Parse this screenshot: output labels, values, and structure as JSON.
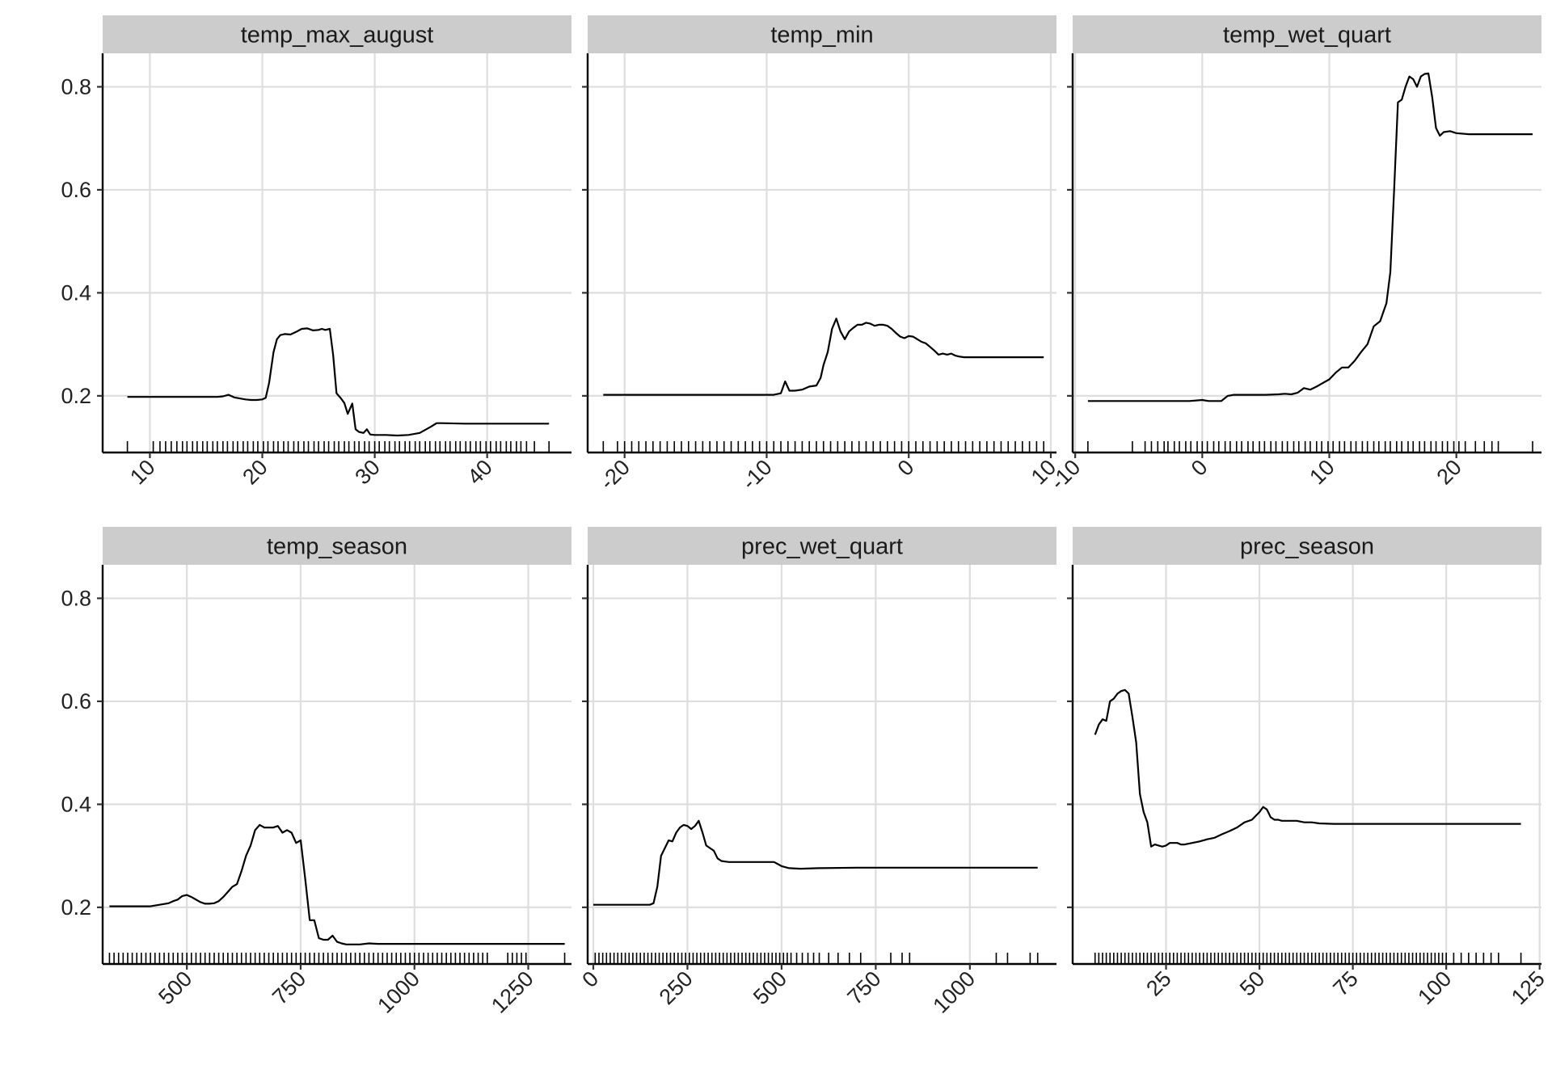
{
  "chart_data": [
    {
      "type": "line",
      "title": "temp_max_august",
      "xlim": [
        5.8,
        47.5
      ],
      "ylim": [
        0.09,
        0.865
      ],
      "xticks": [
        10,
        20,
        30,
        40
      ],
      "yticks": [
        0.2,
        0.4,
        0.6,
        0.8
      ],
      "x": [
        8,
        10,
        12,
        14,
        16,
        16.5,
        17,
        17.5,
        18,
        18.5,
        19,
        19.5,
        20,
        20.3,
        20.6,
        21,
        21.3,
        21.6,
        22,
        22.5,
        23,
        23.5,
        24,
        24.5,
        25,
        25.3,
        25.6,
        26,
        26.3,
        26.6,
        27,
        27.3,
        27.6,
        28,
        28.3,
        28.6,
        29,
        29.3,
        29.6,
        30,
        31,
        32,
        33,
        34,
        35,
        35.5,
        36,
        38,
        40,
        42,
        44,
        45.5
      ],
      "y": [
        0.198,
        0.198,
        0.198,
        0.198,
        0.198,
        0.199,
        0.202,
        0.197,
        0.195,
        0.193,
        0.192,
        0.192,
        0.193,
        0.196,
        0.225,
        0.285,
        0.31,
        0.318,
        0.32,
        0.319,
        0.324,
        0.33,
        0.331,
        0.327,
        0.328,
        0.33,
        0.328,
        0.33,
        0.28,
        0.205,
        0.195,
        0.186,
        0.165,
        0.185,
        0.135,
        0.13,
        0.128,
        0.135,
        0.125,
        0.124,
        0.124,
        0.123,
        0.124,
        0.128,
        0.14,
        0.147,
        0.147,
        0.146,
        0.146,
        0.146,
        0.146,
        0.146
      ],
      "rug": [
        8,
        10.3,
        10.9,
        11.4,
        11.9,
        12.4,
        12.9,
        13.3,
        13.8,
        14.2,
        14.7,
        15.1,
        15.6,
        16,
        16.5,
        16.9,
        17.4,
        17.8,
        18.3,
        18.7,
        19.2,
        19.6,
        20.1,
        20.5,
        21,
        21.4,
        21.9,
        22.3,
        22.8,
        23.2,
        23.7,
        24.1,
        24.6,
        25,
        25.5,
        25.9,
        26.4,
        26.8,
        27.3,
        27.7,
        28.2,
        28.6,
        29.1,
        29.5,
        30,
        30.4,
        30.9,
        31.3,
        31.8,
        32.2,
        32.7,
        33.1,
        33.6,
        34,
        34.5,
        34.9,
        35.4,
        35.8,
        36.3,
        36.7,
        37.2,
        37.6,
        38.1,
        38.5,
        39,
        39.4,
        39.9,
        40.3,
        40.8,
        41.2,
        41.7,
        42.1,
        42.6,
        43,
        43.5,
        44.2,
        45.5
      ]
    },
    {
      "type": "line",
      "title": "temp_min",
      "xlim": [
        -22.6,
        10.4
      ],
      "ylim": [
        0.09,
        0.865
      ],
      "xticks": [
        -20,
        -10,
        0,
        10
      ],
      "yticks": [
        0.2,
        0.4,
        0.6,
        0.8
      ],
      "x": [
        -21.5,
        -18,
        -15,
        -12,
        -9.5,
        -9,
        -8.7,
        -8.4,
        -8,
        -7.5,
        -7,
        -6.5,
        -6.2,
        -6,
        -5.7,
        -5.4,
        -5.1,
        -4.8,
        -4.5,
        -4.2,
        -3.9,
        -3.6,
        -3.3,
        -3,
        -2.7,
        -2.4,
        -2.1,
        -1.8,
        -1.5,
        -1.2,
        -0.9,
        -0.6,
        -0.3,
        0,
        0.3,
        0.6,
        0.9,
        1.2,
        1.5,
        1.8,
        2.1,
        2.4,
        2.7,
        3,
        3.3,
        3.6,
        3.9,
        4.2,
        4.5,
        5,
        6,
        7,
        8,
        9.5
      ],
      "y": [
        0.202,
        0.202,
        0.202,
        0.202,
        0.202,
        0.205,
        0.228,
        0.21,
        0.21,
        0.212,
        0.218,
        0.22,
        0.235,
        0.26,
        0.285,
        0.33,
        0.35,
        0.325,
        0.31,
        0.325,
        0.332,
        0.338,
        0.338,
        0.342,
        0.34,
        0.336,
        0.338,
        0.338,
        0.336,
        0.33,
        0.322,
        0.315,
        0.312,
        0.316,
        0.315,
        0.31,
        0.305,
        0.302,
        0.295,
        0.288,
        0.28,
        0.282,
        0.28,
        0.282,
        0.278,
        0.276,
        0.275,
        0.275,
        0.275,
        0.275,
        0.275,
        0.275,
        0.275,
        0.275
      ],
      "rug": [
        -21.5,
        -20.5,
        -20,
        -19.5,
        -19,
        -18.5,
        -18,
        -17.5,
        -17,
        -16.5,
        -16,
        -15.5,
        -15,
        -14.5,
        -14,
        -13.5,
        -13,
        -12.5,
        -12,
        -11.5,
        -11,
        -10.5,
        -10,
        -9.5,
        -9,
        -8.5,
        -8,
        -7.5,
        -7,
        -6.5,
        -6,
        -5.5,
        -5,
        -4.5,
        -4,
        -3.5,
        -3,
        -2.5,
        -2,
        -1.5,
        -1,
        -0.5,
        0,
        0.5,
        1,
        1.5,
        2,
        2.5,
        3,
        3.5,
        4,
        4.5,
        5,
        5.5,
        6,
        6.5,
        7,
        7.5,
        8,
        8.5,
        9,
        9.5
      ]
    },
    {
      "type": "line",
      "title": "temp_wet_quart",
      "xlim": [
        -10.2,
        26.7
      ],
      "ylim": [
        0.09,
        0.865
      ],
      "xticks": [
        -10,
        0,
        10,
        20
      ],
      "yticks": [
        0.2,
        0.4,
        0.6,
        0.8
      ],
      "x": [
        -9,
        -6,
        -3,
        -1,
        0,
        0.5,
        1,
        1.5,
        2,
        2.5,
        3,
        4,
        5,
        6,
        6.5,
        7,
        7.5,
        8,
        8.5,
        9,
        9.5,
        10,
        10.5,
        11,
        11.5,
        12,
        12.5,
        13,
        13.5,
        14,
        14.5,
        14.8,
        15.1,
        15.4,
        15.7,
        16,
        16.3,
        16.6,
        16.9,
        17.2,
        17.5,
        17.8,
        18.1,
        18.4,
        18.7,
        19,
        19.5,
        20,
        21,
        23,
        25,
        26
      ],
      "y": [
        0.19,
        0.19,
        0.19,
        0.19,
        0.192,
        0.19,
        0.19,
        0.19,
        0.2,
        0.202,
        0.202,
        0.202,
        0.202,
        0.203,
        0.204,
        0.203,
        0.206,
        0.215,
        0.212,
        0.218,
        0.225,
        0.232,
        0.245,
        0.255,
        0.255,
        0.268,
        0.285,
        0.3,
        0.335,
        0.345,
        0.38,
        0.44,
        0.6,
        0.77,
        0.775,
        0.8,
        0.82,
        0.815,
        0.8,
        0.82,
        0.825,
        0.826,
        0.78,
        0.72,
        0.705,
        0.712,
        0.714,
        0.71,
        0.708,
        0.708,
        0.708,
        0.708
      ],
      "rug": [
        -9,
        -5.5,
        -4.5,
        -4,
        -3.5,
        -3,
        -2.7,
        -2.2,
        -1.8,
        -1.3,
        -0.9,
        -0.4,
        0,
        0.4,
        0.9,
        1.3,
        1.8,
        2.2,
        2.7,
        3.1,
        3.6,
        4,
        4.5,
        4.9,
        5.4,
        5.8,
        6.3,
        6.7,
        7.2,
        7.6,
        8.1,
        8.5,
        9,
        9.4,
        9.9,
        10.3,
        10.8,
        11.2,
        11.7,
        12.1,
        12.6,
        13,
        13.5,
        13.9,
        14.4,
        14.8,
        15.3,
        15.7,
        16.2,
        16.6,
        17.1,
        17.5,
        18,
        18.4,
        18.9,
        19.3,
        19.8,
        20.2,
        20.7,
        21.5,
        22.2,
        22.8,
        23.3,
        26
      ]
    },
    {
      "type": "line",
      "title": "temp_season",
      "xlim": [
        315,
        1345
      ],
      "ylim": [
        0.09,
        0.865
      ],
      "xticks": [
        500,
        750,
        1000,
        1250
      ],
      "yticks": [
        0.2,
        0.4,
        0.6,
        0.8
      ],
      "x": [
        330,
        380,
        420,
        440,
        460,
        470,
        480,
        490,
        500,
        510,
        520,
        530,
        540,
        550,
        560,
        570,
        580,
        590,
        600,
        610,
        620,
        630,
        640,
        650,
        660,
        670,
        680,
        690,
        700,
        710,
        720,
        730,
        740,
        750,
        760,
        770,
        780,
        790,
        800,
        810,
        820,
        830,
        840,
        850,
        860,
        880,
        900,
        920,
        950,
        1000,
        1100,
        1200,
        1330
      ],
      "y": [
        0.202,
        0.202,
        0.202,
        0.205,
        0.208,
        0.212,
        0.215,
        0.222,
        0.224,
        0.22,
        0.215,
        0.21,
        0.207,
        0.207,
        0.208,
        0.212,
        0.22,
        0.23,
        0.24,
        0.245,
        0.27,
        0.3,
        0.32,
        0.35,
        0.36,
        0.355,
        0.355,
        0.355,
        0.358,
        0.345,
        0.35,
        0.345,
        0.325,
        0.33,
        0.255,
        0.175,
        0.175,
        0.14,
        0.137,
        0.137,
        0.145,
        0.133,
        0.13,
        0.128,
        0.128,
        0.128,
        0.13,
        0.129,
        0.129,
        0.129,
        0.129,
        0.129,
        0.129
      ],
      "rug": [
        330,
        340,
        350,
        360,
        370,
        380,
        390,
        400,
        410,
        420,
        430,
        440,
        450,
        460,
        470,
        480,
        490,
        500,
        510,
        520,
        530,
        540,
        550,
        560,
        570,
        580,
        590,
        600,
        610,
        620,
        630,
        640,
        650,
        660,
        670,
        680,
        690,
        700,
        710,
        720,
        730,
        740,
        750,
        760,
        770,
        780,
        790,
        800,
        810,
        820,
        830,
        840,
        850,
        860,
        870,
        880,
        890,
        900,
        910,
        920,
        930,
        940,
        950,
        960,
        970,
        980,
        990,
        1000,
        1010,
        1020,
        1030,
        1040,
        1050,
        1060,
        1070,
        1080,
        1090,
        1100,
        1110,
        1120,
        1130,
        1140,
        1150,
        1160,
        1205,
        1215,
        1225,
        1235,
        1245,
        1330
      ]
    },
    {
      "type": "line",
      "title": "prec_wet_quart",
      "xlim": [
        -15,
        1230
      ],
      "ylim": [
        0.09,
        0.865
      ],
      "xticks": [
        0,
        250,
        500,
        750,
        1000
      ],
      "yticks": [
        0.2,
        0.4,
        0.6,
        0.8
      ],
      "x": [
        0,
        50,
        100,
        150,
        160,
        170,
        180,
        190,
        200,
        210,
        220,
        230,
        240,
        250,
        260,
        270,
        280,
        290,
        300,
        310,
        320,
        330,
        340,
        350,
        360,
        380,
        400,
        450,
        480,
        500,
        520,
        550,
        600,
        700,
        800,
        900,
        1000,
        1100,
        1180
      ],
      "y": [
        0.205,
        0.205,
        0.205,
        0.205,
        0.208,
        0.24,
        0.3,
        0.315,
        0.33,
        0.328,
        0.345,
        0.355,
        0.36,
        0.358,
        0.352,
        0.358,
        0.368,
        0.345,
        0.32,
        0.315,
        0.31,
        0.295,
        0.29,
        0.289,
        0.288,
        0.288,
        0.288,
        0.288,
        0.288,
        0.28,
        0.276,
        0.275,
        0.276,
        0.277,
        0.277,
        0.277,
        0.277,
        0.277,
        0.277
      ],
      "rug": [
        5,
        15,
        25,
        35,
        45,
        55,
        65,
        75,
        85,
        95,
        105,
        115,
        125,
        135,
        145,
        155,
        165,
        175,
        185,
        195,
        205,
        215,
        225,
        235,
        245,
        255,
        265,
        275,
        285,
        295,
        305,
        315,
        325,
        335,
        345,
        355,
        365,
        375,
        385,
        395,
        405,
        415,
        425,
        435,
        445,
        455,
        465,
        475,
        485,
        495,
        505,
        515,
        525,
        540,
        555,
        570,
        585,
        600,
        625,
        650,
        680,
        710,
        790,
        820,
        840,
        1070,
        1100,
        1160,
        1180
      ]
    },
    {
      "type": "line",
      "title": "prec_season",
      "xlim": [
        0,
        125.5
      ],
      "ylim": [
        0.09,
        0.865
      ],
      "xticks": [
        25,
        50,
        75,
        100,
        125
      ],
      "yticks": [
        0.2,
        0.4,
        0.6,
        0.8
      ],
      "x": [
        6,
        7,
        8,
        9,
        10,
        11,
        12,
        13,
        14,
        15,
        16,
        17,
        18,
        19,
        20,
        21,
        22,
        23,
        24,
        25,
        26,
        27,
        28,
        29,
        30,
        32,
        34,
        36,
        38,
        40,
        42,
        44,
        46,
        48,
        50,
        51,
        52,
        53,
        54,
        55,
        56,
        58,
        60,
        62,
        64,
        66,
        70,
        80,
        90,
        100,
        110,
        120
      ],
      "y": [
        0.535,
        0.555,
        0.565,
        0.562,
        0.6,
        0.605,
        0.615,
        0.62,
        0.622,
        0.615,
        0.57,
        0.52,
        0.42,
        0.385,
        0.365,
        0.318,
        0.322,
        0.32,
        0.318,
        0.32,
        0.325,
        0.325,
        0.325,
        0.322,
        0.322,
        0.325,
        0.328,
        0.332,
        0.335,
        0.342,
        0.348,
        0.355,
        0.365,
        0.37,
        0.385,
        0.395,
        0.39,
        0.375,
        0.37,
        0.37,
        0.368,
        0.368,
        0.368,
        0.365,
        0.365,
        0.363,
        0.362,
        0.362,
        0.362,
        0.362,
        0.362,
        0.362
      ],
      "rug": [
        6,
        7,
        8,
        9,
        10,
        11,
        12,
        13,
        14,
        15,
        16,
        17,
        18,
        19,
        20,
        21,
        22,
        23,
        24,
        25,
        26,
        27,
        28,
        29,
        30,
        31,
        32,
        33,
        34,
        35,
        36,
        37,
        38,
        39,
        40,
        41,
        42,
        43,
        44,
        45,
        46,
        47,
        48,
        49,
        50,
        51,
        52,
        53,
        54,
        55,
        56,
        57,
        58,
        59,
        60,
        61,
        62,
        63,
        64,
        65,
        66,
        67,
        68,
        69,
        70,
        71,
        72,
        73,
        74,
        75,
        76,
        77,
        78,
        79,
        80,
        81,
        82,
        83,
        84,
        85,
        86,
        87,
        88,
        89,
        90,
        91,
        92,
        93,
        94,
        95,
        96,
        97,
        98,
        99,
        100,
        102,
        104,
        106,
        108,
        110,
        112,
        114,
        120
      ]
    }
  ]
}
